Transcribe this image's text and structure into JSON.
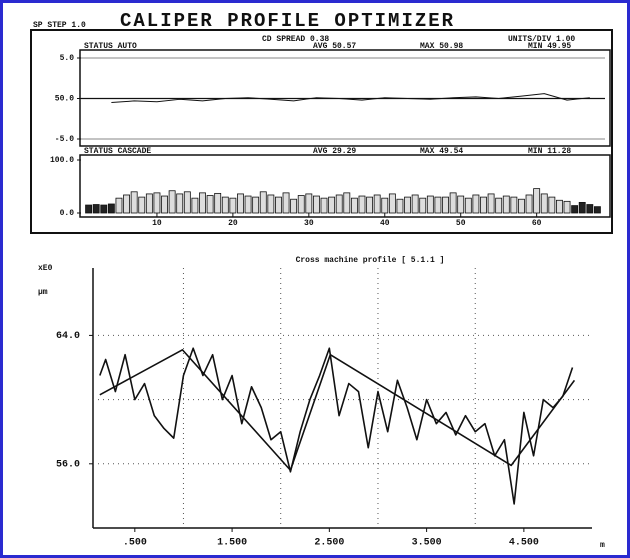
{
  "header": {
    "step": "SP STEP 1.0",
    "title": "CALIPER PROFILE OPTIMIZER"
  },
  "chart_data": [
    {
      "type": "line",
      "annotations": [
        "STATUS AUTO",
        "CD SPREAD 0.38",
        "UNITS/DIV 1.00",
        "AVG 50.57",
        "MAX 50.98",
        "MIN 49.95"
      ],
      "xlim": [
        0,
        69
      ],
      "ylim": [
        -5,
        5
      ],
      "yticks": [
        {
          "value": 5,
          "label": "5.0"
        },
        {
          "value": 0,
          "label": "50.0"
        },
        {
          "value": -5,
          "label": "-5.0"
        }
      ],
      "series": [
        {
          "color": "#111111",
          "x": [
            4,
            7,
            10,
            13,
            16,
            19,
            22,
            25,
            28,
            31,
            34,
            37,
            40,
            43,
            46,
            49,
            52,
            55,
            58,
            61,
            64,
            67
          ],
          "values": [
            -0.5,
            -0.3,
            -0.4,
            -0.1,
            -0.3,
            0.0,
            0.1,
            -0.1,
            -0.3,
            0.1,
            0.0,
            -0.2,
            0.1,
            0.0,
            -0.1,
            0.1,
            0.2,
            0.0,
            0.3,
            0.6,
            -0.2,
            0.1
          ]
        }
      ]
    },
    {
      "type": "bar",
      "annotations": [
        "STATUS CASCADE",
        "AVG 29.29",
        "MAX 49.54",
        "MIN 11.28"
      ],
      "xlim": [
        0,
        69
      ],
      "xticks": [
        10,
        20,
        30,
        40,
        50,
        60
      ],
      "ylim": [
        0,
        100
      ],
      "yticks": [
        {
          "value": 100,
          "label": "100.0"
        },
        {
          "value": 0,
          "label": "0.0"
        }
      ],
      "x": [
        1,
        2,
        3,
        4,
        5,
        6,
        7,
        8,
        9,
        10,
        11,
        12,
        13,
        14,
        15,
        16,
        17,
        18,
        19,
        20,
        21,
        22,
        23,
        24,
        25,
        26,
        27,
        28,
        29,
        30,
        31,
        32,
        33,
        34,
        35,
        36,
        37,
        38,
        39,
        40,
        41,
        42,
        43,
        44,
        45,
        46,
        47,
        48,
        49,
        50,
        51,
        52,
        53,
        54,
        55,
        56,
        57,
        58,
        59,
        60,
        61,
        62,
        63,
        64,
        65,
        66,
        67,
        68
      ],
      "series": [
        {
          "color": "#222222",
          "values": [
            15,
            16,
            15,
            17,
            null,
            null,
            null,
            null,
            null,
            null,
            null,
            null,
            null,
            null,
            null,
            null,
            null,
            null,
            null,
            null,
            null,
            null,
            null,
            null,
            null,
            null,
            null,
            null,
            null,
            null,
            null,
            null,
            null,
            null,
            null,
            null,
            null,
            null,
            null,
            null,
            null,
            null,
            null,
            null,
            null,
            null,
            null,
            null,
            null,
            null,
            null,
            null,
            null,
            null,
            null,
            null,
            null,
            null,
            null,
            null,
            null,
            null,
            null,
            null,
            14,
            20,
            16,
            12
          ]
        },
        {
          "color": "#dddddd",
          "values": [
            null,
            null,
            null,
            null,
            28,
            34,
            40,
            30,
            36,
            38,
            32,
            42,
            36,
            40,
            28,
            38,
            33,
            37,
            30,
            28,
            36,
            32,
            30,
            40,
            34,
            30,
            38,
            26,
            33,
            36,
            32,
            28,
            30,
            34,
            38,
            28,
            32,
            30,
            34,
            28,
            36,
            26,
            30,
            34,
            28,
            32,
            30,
            30,
            38,
            32,
            28,
            34,
            30,
            36,
            28,
            32,
            30,
            26,
            34,
            46,
            36,
            30,
            24,
            22,
            null,
            null,
            null,
            null
          ]
        }
      ]
    },
    {
      "type": "line",
      "title": "Cross machine profile [ 5.1.1 ]",
      "y_label_top": "xE0",
      "y_label": "μm",
      "x_label": "m",
      "xlim": [
        0.07,
        5.18
      ],
      "ylim": [
        52,
        68.2
      ],
      "xticks": [
        {
          "value": 0.5,
          "label": ".500"
        },
        {
          "value": 1.5,
          "label": "1.500"
        },
        {
          "value": 2.5,
          "label": "2.500"
        },
        {
          "value": 3.5,
          "label": "3.500"
        },
        {
          "value": 4.5,
          "label": "4.500"
        }
      ],
      "yticks": [
        {
          "value": 64,
          "label": "64.0"
        },
        {
          "value": 56,
          "label": "56.0"
        }
      ],
      "grid_x": [
        1,
        2,
        3,
        4
      ],
      "grid_y": [
        56,
        60,
        64
      ],
      "series": [
        {
          "color": "#111111",
          "x": [
            0.14,
            0.2,
            0.3,
            0.4,
            0.5,
            0.6,
            0.7,
            0.8,
            0.9,
            1.0,
            1.1,
            1.2,
            1.3,
            1.4,
            1.5,
            1.6,
            1.7,
            1.8,
            1.9,
            2.0,
            2.1,
            2.2,
            2.3,
            2.4,
            2.5,
            2.6,
            2.7,
            2.8,
            2.9,
            3.0,
            3.1,
            3.2,
            3.3,
            3.4,
            3.5,
            3.6,
            3.7,
            3.8,
            3.9,
            4.0,
            4.1,
            4.2,
            4.3,
            4.4,
            4.5,
            4.6,
            4.7,
            4.8,
            4.9,
            5.0
          ],
          "values": [
            61.5,
            62.5,
            60.5,
            62.8,
            60.0,
            61.0,
            59.0,
            58.2,
            57.6,
            61.5,
            63.2,
            61.5,
            62.8,
            60.0,
            61.5,
            58.5,
            60.8,
            59.5,
            57.5,
            58.0,
            55.5,
            58.0,
            60.0,
            61.5,
            63.2,
            59.0,
            61.0,
            60.5,
            57.0,
            60.5,
            58.0,
            61.2,
            59.5,
            57.5,
            60.0,
            58.5,
            59.2,
            57.8,
            59.0,
            58.0,
            58.5,
            56.5,
            57.5,
            53.5,
            59.2,
            56.5,
            60.0,
            59.5,
            60.2,
            62.0
          ]
        },
        {
          "color": "#111111",
          "x": [
            0.14,
            0.99,
            2.1,
            2.51,
            4.37,
            5.02
          ],
          "values": [
            60.3,
            63.1,
            55.6,
            62.8,
            55.9,
            61.2
          ]
        }
      ]
    }
  ]
}
